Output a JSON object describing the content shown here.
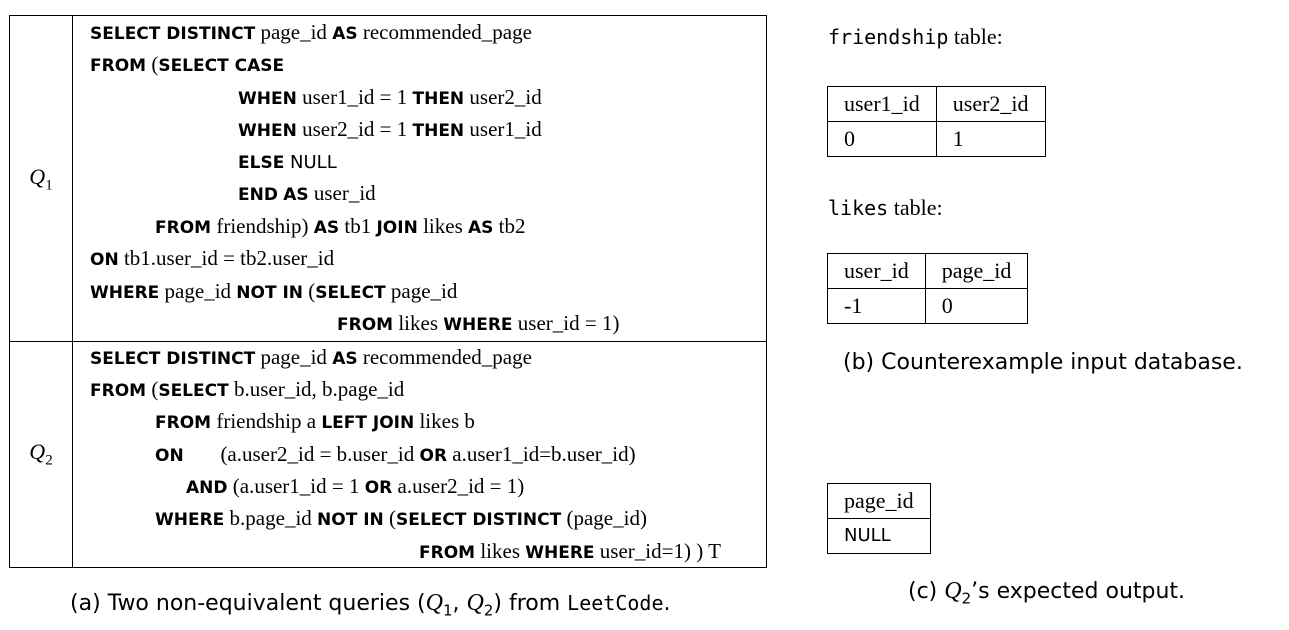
{
  "queries": {
    "q1": {
      "label": "Q",
      "label_sub": "1",
      "lines": {
        "l1": {
          "a": "SELECT DISTINCT",
          "b": " page_id ",
          "c": "AS",
          "d": " recommended_page"
        },
        "l2": {
          "a": "FROM",
          "b": " (",
          "c": "SELECT CASE"
        },
        "l3": {
          "a": "WHEN",
          "b": " user1_id = 1 ",
          "c": "THEN",
          "d": " user2_id"
        },
        "l4": {
          "a": "WHEN",
          "b": " user2_id = 1 ",
          "c": "THEN",
          "d": " user1_id"
        },
        "l5": {
          "a": "ELSE",
          "b": " NULL"
        },
        "l6": {
          "a": "END",
          "b": " ",
          "c": "AS",
          "d": " user_id"
        },
        "l7": {
          "a": "FROM",
          "b": " friendship) ",
          "c": "AS",
          "d": " tb1 ",
          "e": "JOIN",
          "f": " likes ",
          "g": "AS",
          "h": " tb2"
        },
        "l8": {
          "a": "ON",
          "b": " tb1.user_id = tb2.user_id"
        },
        "l9": {
          "a": "WHERE",
          "b": " page_id ",
          "c": "NOT IN",
          "d": " (",
          "e": "SELECT",
          "f": " page_id"
        },
        "l10": {
          "a": "FROM",
          "b": " likes ",
          "c": "WHERE",
          "d": " user_id = 1)"
        }
      }
    },
    "q2": {
      "label": "Q",
      "label_sub": "2",
      "lines": {
        "l1": {
          "a": "SELECT DISTINCT",
          "b": " page_id ",
          "c": "AS",
          "d": " recommended_page"
        },
        "l2": {
          "a": "FROM",
          "b": " (",
          "c": "SELECT",
          "d": " b.user_id, b.page_id"
        },
        "l3": {
          "a": "FROM",
          "b": " friendship a ",
          "c": "LEFT JOIN",
          "d": " likes b"
        },
        "l4": {
          "a": "ON",
          "b": "       (a.user2_id = b.user_id ",
          "c": "OR",
          "d": " a.user1_id=b.user_id)"
        },
        "l5": {
          "a": "AND",
          "b": " (a.user1_id = 1 ",
          "c": "OR",
          "d": " a.user2_id = 1)"
        },
        "l6": {
          "a": "WHERE",
          "b": " b.page_id ",
          "c": "NOT IN",
          "d": " (",
          "e": "SELECT DISTINCT",
          "f": " (page_id)"
        },
        "l7": {
          "a": "FROM",
          "b": " likes ",
          "c": "WHERE",
          "d": " user_id=1) ) T"
        }
      }
    }
  },
  "caption_a": {
    "pre": "(a) Two non-equivalent queries (",
    "q": "Q",
    "s1": "1",
    "comma": ", ",
    "s2": "2",
    "post": ") from ",
    "code": "LeetCode",
    "end": "."
  },
  "friendship": {
    "title": "friendship",
    "suffix": " table:",
    "headers": [
      "user1_id",
      "user2_id"
    ],
    "rows": [
      [
        "0",
        "1"
      ]
    ]
  },
  "likes": {
    "title": "likes",
    "suffix": " table:",
    "headers": [
      "user_id",
      "page_id"
    ],
    "rows": [
      [
        "-1",
        "0"
      ]
    ]
  },
  "caption_b": "(b) Counterexample input database.",
  "output": {
    "headers": [
      "page_id"
    ],
    "rows": [
      [
        "NULL"
      ]
    ]
  },
  "caption_c": {
    "pre": "(c) ",
    "q": "Q",
    "sub": "2",
    "post": "’s expected output."
  }
}
